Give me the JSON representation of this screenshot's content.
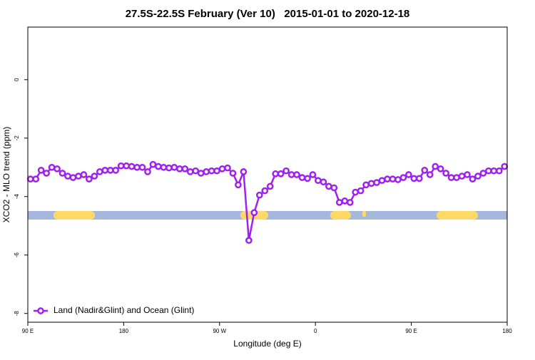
{
  "chart_data": {
    "type": "line",
    "title": "27.5S-22.5S February (Ver 10)   2015-01-01 to 2020-12-18",
    "x_label": "Longitude (deg E)",
    "y_label": "XCO2 - MLO trend (ppm)",
    "x": [
      92.5,
      97.5,
      102.5,
      107.5,
      112.5,
      117.5,
      122.5,
      127.5,
      132.5,
      137.5,
      142.5,
      147.5,
      152.5,
      157.5,
      162.5,
      167.5,
      172.5,
      177.5,
      182.5,
      187.5,
      192.5,
      197.5,
      202.5,
      207.5,
      212.5,
      217.5,
      222.5,
      227.5,
      232.5,
      237.5,
      242.5,
      247.5,
      252.5,
      257.5,
      262.5,
      267.5,
      272.5,
      277.5,
      282.5,
      287.5,
      292.5,
      297.5,
      302.5,
      307.5,
      312.5,
      317.5,
      322.5,
      327.5,
      332.5,
      337.5,
      342.5,
      347.5,
      352.5,
      357.5,
      362.5,
      367.5,
      372.5,
      377.5,
      382.5,
      387.5,
      392.5,
      397.5,
      402.5,
      407.5,
      412.5,
      417.5,
      422.5,
      427.5,
      432.5,
      437.5,
      442.5,
      447.5,
      452.5,
      457.5,
      462.5,
      467.5,
      472.5,
      477.5,
      482.5,
      487.5,
      492.5,
      497.5,
      502.5,
      507.5,
      512.5,
      517.5,
      522.5,
      527.5,
      532.5,
      537.5
    ],
    "series": [
      {
        "name": "Land (Nadir&Glint) and Ocean (Glint)",
        "color": "#a020f0",
        "values": [
          -3.4,
          -3.4,
          -3.1,
          -3.2,
          -3.0,
          -3.05,
          -3.2,
          -3.3,
          -3.35,
          -3.3,
          -3.25,
          -3.4,
          -3.3,
          -3.15,
          -3.1,
          -3.1,
          -3.1,
          -2.95,
          -2.95,
          -2.97,
          -3.0,
          -3.0,
          -3.15,
          -2.9,
          -2.97,
          -3.0,
          -3.02,
          -3.0,
          -3.05,
          -3.05,
          -3.15,
          -3.12,
          -3.2,
          -3.15,
          -3.12,
          -3.12,
          -3.05,
          -3.02,
          -3.2,
          -3.6,
          -3.15,
          -5.5,
          -4.55,
          -3.95,
          -3.8,
          -3.65,
          -3.22,
          -3.22,
          -3.12,
          -3.25,
          -3.25,
          -3.35,
          -3.38,
          -3.25,
          -3.45,
          -3.5,
          -3.65,
          -3.7,
          -4.2,
          -4.15,
          -4.2,
          -3.85,
          -3.8,
          -3.6,
          -3.55,
          -3.52,
          -3.45,
          -3.4,
          -3.4,
          -3.42,
          -3.35,
          -3.25,
          -3.38,
          -3.38,
          -3.1,
          -3.25,
          -2.97,
          -3.05,
          -3.2,
          -3.35,
          -3.35,
          -3.3,
          -3.25,
          -3.4,
          -3.3,
          -3.2,
          -3.12,
          -3.12,
          -3.12,
          -2.97
        ]
      }
    ],
    "xlim": [
      90,
      540
    ],
    "xticks": [
      {
        "value": 90,
        "label": "90 E"
      },
      180,
      {
        "value": 270,
        "label": "90 W"
      },
      {
        "value": 360,
        "label": "0"
      },
      {
        "value": 450,
        "label": "90 E"
      },
      {
        "value": 540,
        "label": "180"
      }
    ],
    "ylim": [
      -8.3,
      1.8
    ],
    "yticks": [
      0,
      -2,
      -4,
      -6,
      -8
    ],
    "legend": "bottom-left"
  }
}
